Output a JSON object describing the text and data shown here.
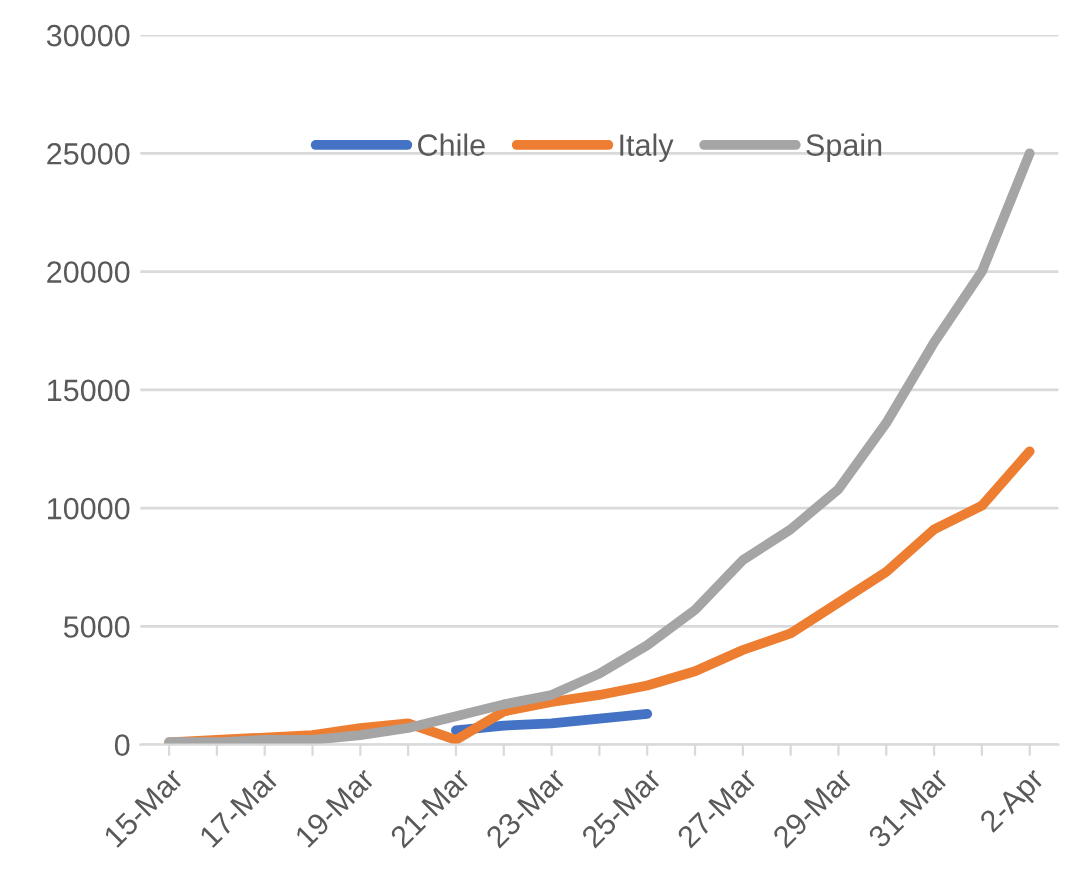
{
  "chart_data": {
    "type": "line",
    "categories": [
      "15-Mar",
      null,
      "17-Mar",
      null,
      "19-Mar",
      null,
      "21-Mar",
      null,
      "23-Mar",
      null,
      "25-Mar",
      null,
      "27-Mar",
      null,
      "29-Mar",
      null,
      "31-Mar",
      null,
      "2-Apr"
    ],
    "series": [
      {
        "name": "Chile",
        "color": "#4472c4",
        "values": [
          null,
          null,
          null,
          null,
          null,
          null,
          600,
          800,
          900,
          1100,
          1300,
          null,
          null,
          null,
          null,
          null,
          null,
          null,
          null
        ]
      },
      {
        "name": "Italy",
        "color": "#ed7d31",
        "values": [
          100,
          200,
          300,
          400,
          700,
          900,
          200,
          1400,
          1800,
          2100,
          2500,
          3100,
          4000,
          4700,
          6000,
          7300,
          9100,
          10100,
          12400
        ]
      },
      {
        "name": "Spain",
        "color": "#a5a5a5",
        "values": [
          100,
          100,
          200,
          200,
          400,
          700,
          1200,
          1700,
          2100,
          3000,
          4200,
          5700,
          7800,
          9100,
          10800,
          13600,
          17000,
          20000,
          25000
        ]
      }
    ],
    "ylim": [
      0,
      30000
    ],
    "yticks": [
      0,
      5000,
      10000,
      15000,
      20000,
      25000,
      30000
    ],
    "grid": "y",
    "legend": "top",
    "marker": "none",
    "line_style": "solid"
  }
}
